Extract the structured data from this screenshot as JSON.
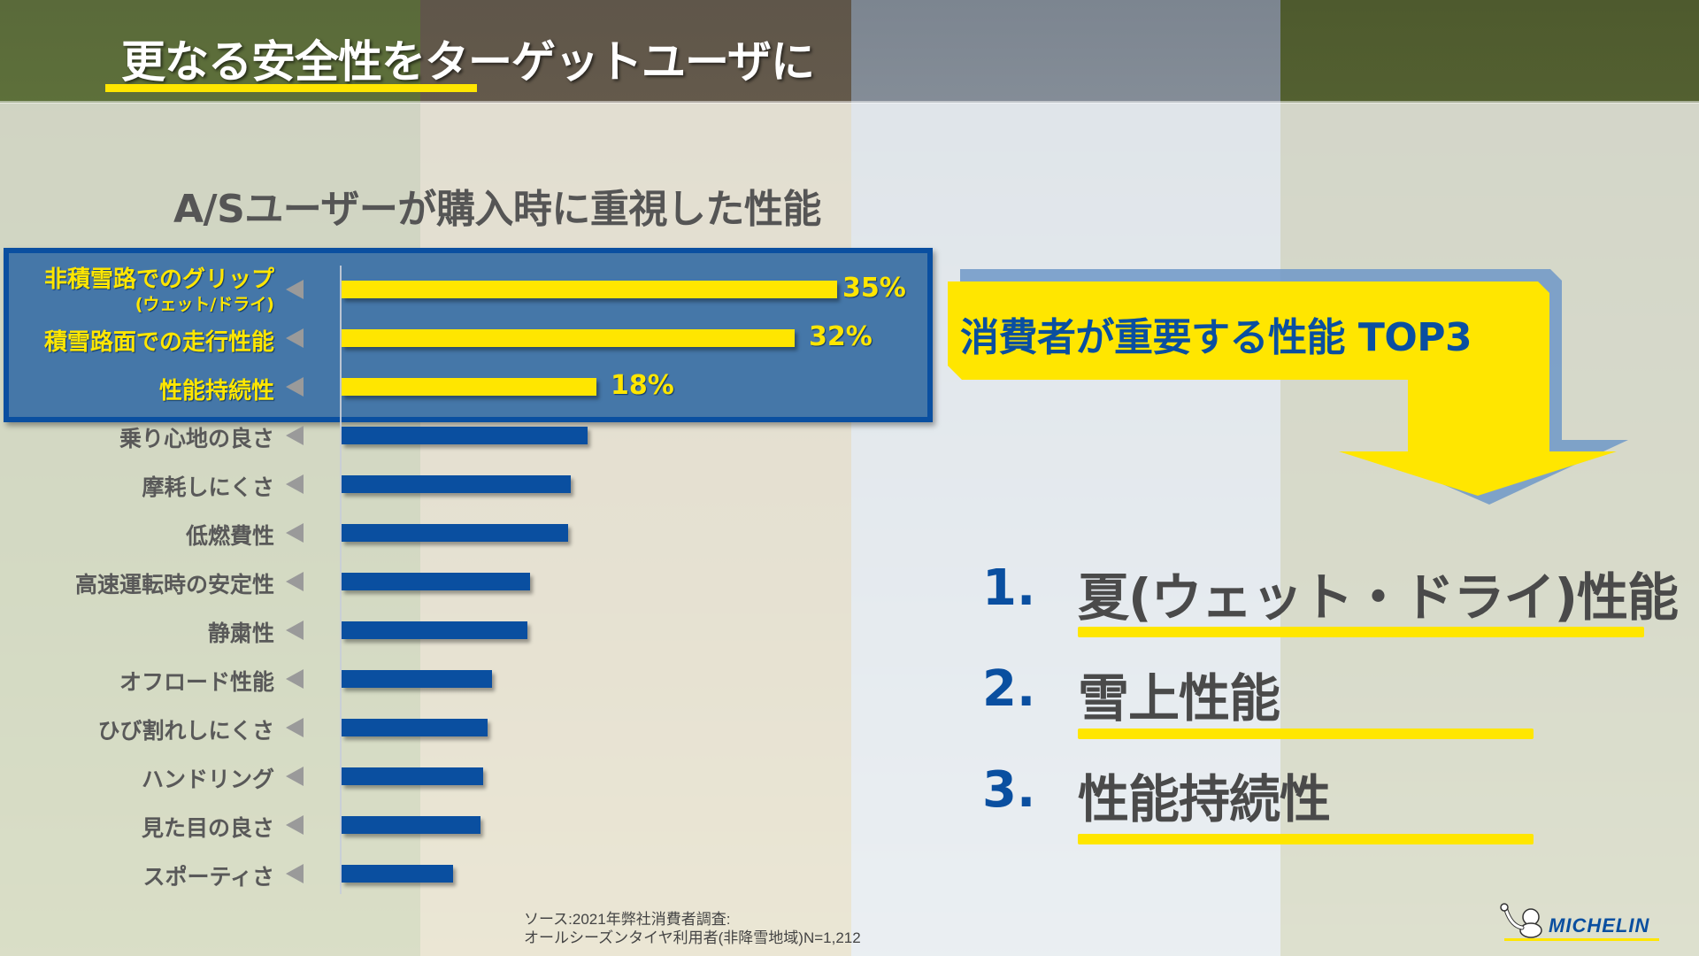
{
  "header": {
    "title": "更なる安全性をターゲットユーザに"
  },
  "chart_title": "A/Sユーザーが購入時に重視した性能",
  "chart_data": {
    "type": "bar",
    "orientation": "horizontal",
    "title": "A/Sユーザーが購入時に重視した性能",
    "xlabel": "",
    "ylabel": "",
    "unit": "%",
    "categories": [
      "非積雪路でのグリップ(ウェット/ドライ)",
      "積雪路面での走行性能",
      "性能持続性",
      "乗り心地の良さ",
      "摩耗しにくさ",
      "低燃費性",
      "高速運転時の安定性",
      "静粛性",
      "オフロード性能",
      "ひび割れしにくさ",
      "ハンドリング",
      "見た目の良さ",
      "スポーティさ"
    ],
    "values": [
      35,
      32,
      18,
      17.4,
      16.2,
      16.0,
      13.3,
      13.1,
      10.6,
      10.3,
      10.0,
      9.8,
      7.9
    ],
    "labeled_values": {
      "非積雪路でのグリップ(ウェット/ドライ)": "35%",
      "積雪路面での走行性能": "32%",
      "性能持続性": "18%"
    },
    "highlighted": [
      "非積雪路でのグリップ(ウェット/ドライ)",
      "積雪路面での走行性能",
      "性能持続性"
    ],
    "grid": false,
    "colors": {
      "highlight": "#FFE600",
      "normal": "#0A4FA0"
    }
  },
  "rows": [
    {
      "label": "非積雪路でのグリップ",
      "sub": "(ウェット/ドライ)",
      "value": 35,
      "pct": "35%",
      "hl": true
    },
    {
      "label": "積雪路面での走行性能",
      "value": 32,
      "pct": "32%",
      "hl": true
    },
    {
      "label": "性能持続性",
      "value": 18,
      "pct": "18%",
      "hl": true
    },
    {
      "label": "乗り心地の良さ",
      "value": 17.4
    },
    {
      "label": "摩耗しにくさ",
      "value": 16.2
    },
    {
      "label": "低燃費性",
      "value": 16.0
    },
    {
      "label": "高速運転時の安定性",
      "value": 13.3
    },
    {
      "label": "静粛性",
      "value": 13.1
    },
    {
      "label": "オフロード性能",
      "value": 10.6
    },
    {
      "label": "ひび割れしにくさ",
      "value": 10.3
    },
    {
      "label": "ハンドリング",
      "value": 10.0
    },
    {
      "label": "見た目の良さ",
      "value": 9.8
    },
    {
      "label": "スポーティさ",
      "value": 7.9
    }
  ],
  "top3": {
    "heading": "消費者が重要する性能 TOP3",
    "items": [
      {
        "num": "1.",
        "text": "夏(ウェット・ドライ)性能"
      },
      {
        "num": "2.",
        "text": "雪上性能"
      },
      {
        "num": "3.",
        "text": "性能持続性"
      }
    ]
  },
  "source": {
    "line1": "ソース:2021年弊社消費者調査:",
    "line2": "オールシーズンタイヤ利用者(非降雪地域)N=1,212"
  },
  "logo": {
    "text": "MICHELIN"
  },
  "colors": {
    "yellow": "#FFE600",
    "blue": "#0A4FA0",
    "box_fill": "#4577A8",
    "text_gray": "#555555"
  }
}
